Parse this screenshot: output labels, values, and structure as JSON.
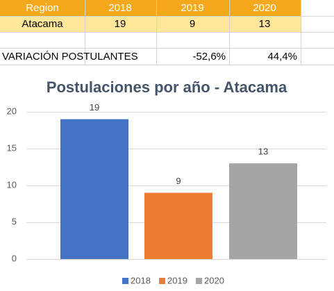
{
  "table": {
    "header": [
      "Region",
      "2018",
      "2019",
      "2020"
    ],
    "rows": [
      [
        "Atacama",
        19,
        9,
        13
      ]
    ],
    "variation": {
      "label": "VARIACIÓN POSTULANTES",
      "values": [
        "-52,6%",
        "44,4%"
      ]
    }
  },
  "chart_data": {
    "type": "bar",
    "title": "Postulaciones por año - Atacama",
    "categories": [
      "2018",
      "2019",
      "2020"
    ],
    "values": [
      19,
      9,
      13
    ],
    "colors": [
      "#4472c4",
      "#ed7d31",
      "#a5a5a5"
    ],
    "ylim": [
      0,
      20
    ],
    "yticks": [
      0,
      5,
      10,
      15,
      20
    ],
    "grid": true,
    "legend": "bottom"
  }
}
